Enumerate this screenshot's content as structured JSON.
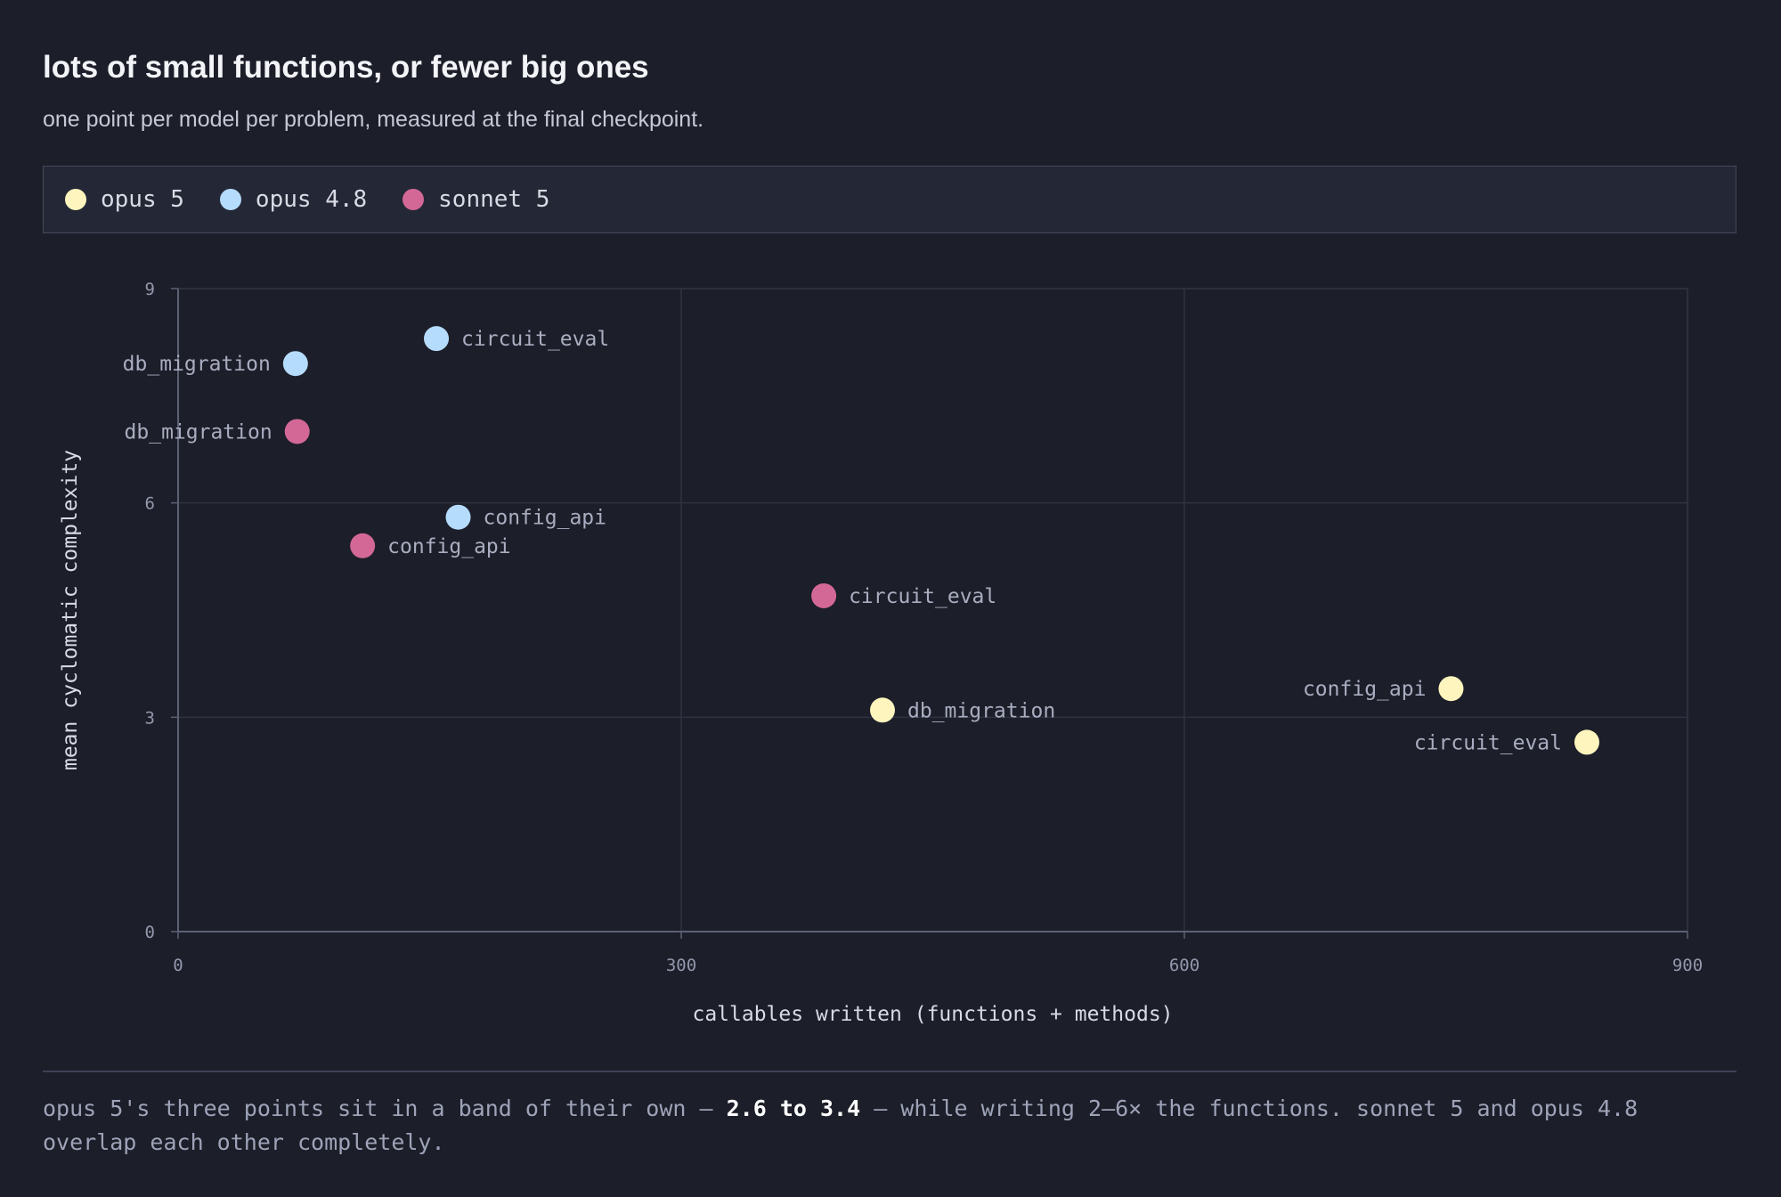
{
  "title": "lots of small functions, or fewer big ones",
  "subtitle": "one point per model per problem, measured at the final checkpoint.",
  "colors": {
    "background": "#1c1e29",
    "opus 5": "#fdf5bd",
    "opus 4.8": "#b5dcfd",
    "sonnet 5": "#d36896",
    "grid": "#2f3240",
    "axis": "#5b6075"
  },
  "legend": [
    {
      "label": "opus 5",
      "color": "#fdf5bd"
    },
    {
      "label": "opus 4.8",
      "color": "#b5dcfd"
    },
    {
      "label": "sonnet 5",
      "color": "#d36896"
    }
  ],
  "chart_data": {
    "type": "scatter",
    "xlabel": "callables written (functions + methods)",
    "ylabel": "mean cyclomatic complexity",
    "xlim": [
      0,
      900
    ],
    "ylim": [
      0,
      9
    ],
    "xticks": [
      0,
      300,
      600,
      900
    ],
    "yticks": [
      0,
      3,
      6,
      9
    ],
    "grid": true,
    "legend_position": "top",
    "series": [
      {
        "name": "opus 5",
        "color": "#fdf5bd",
        "points": [
          {
            "label": "db_migration",
            "x": 420,
            "y": 3.1
          },
          {
            "label": "config_api",
            "x": 759,
            "y": 3.4
          },
          {
            "label": "circuit_eval",
            "x": 840,
            "y": 2.65
          }
        ]
      },
      {
        "name": "opus 4.8",
        "color": "#b5dcfd",
        "points": [
          {
            "label": "circuit_eval",
            "x": 154,
            "y": 8.3
          },
          {
            "label": "db_migration",
            "x": 70,
            "y": 7.95
          },
          {
            "label": "config_api",
            "x": 167,
            "y": 5.8
          }
        ]
      },
      {
        "name": "sonnet 5",
        "color": "#d36896",
        "points": [
          {
            "label": "db_migration",
            "x": 71,
            "y": 7.0
          },
          {
            "label": "config_api",
            "x": 110,
            "y": 5.4
          },
          {
            "label": "circuit_eval",
            "x": 385,
            "y": 4.7
          }
        ]
      }
    ]
  },
  "footnote": {
    "before": "opus 5's three points sit in a band of their own — ",
    "bold": "2.6 to 3.4",
    "after": " — while writing 2–6× the functions. sonnet 5 and opus 4.8 overlap each other completely."
  }
}
